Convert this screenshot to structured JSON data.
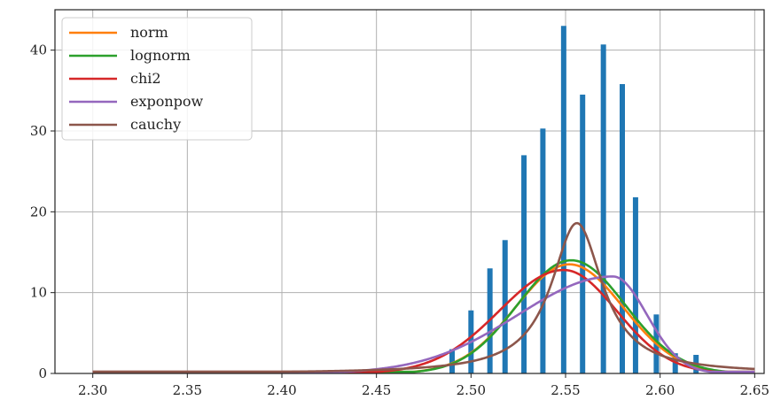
{
  "chart_data": {
    "type": "bar",
    "title": "",
    "xlabel": "",
    "ylabel": "",
    "xlim": [
      2.28,
      2.655
    ],
    "ylim": [
      0,
      45
    ],
    "grid": true,
    "legend_position": "top-left",
    "x_ticks": [
      "2.30",
      "2.35",
      "2.40",
      "2.45",
      "2.50",
      "2.55",
      "2.60",
      "2.65"
    ],
    "y_ticks": [
      "0",
      "10",
      "20",
      "30",
      "40"
    ],
    "histogram": {
      "color": "#1f77b4",
      "bins": [
        {
          "x": 2.49,
          "y": 3
        },
        {
          "x": 2.5,
          "y": 7.8
        },
        {
          "x": 2.51,
          "y": 13
        },
        {
          "x": 2.518,
          "y": 16.5
        },
        {
          "x": 2.528,
          "y": 27
        },
        {
          "x": 2.538,
          "y": 30.3
        },
        {
          "x": 2.549,
          "y": 43
        },
        {
          "x": 2.559,
          "y": 34.5
        },
        {
          "x": 2.57,
          "y": 40.7
        },
        {
          "x": 2.58,
          "y": 35.8
        },
        {
          "x": 2.587,
          "y": 21.8
        },
        {
          "x": 2.598,
          "y": 7.3
        },
        {
          "x": 2.608,
          "y": 2.5
        },
        {
          "x": 2.619,
          "y": 2.3
        }
      ]
    },
    "series": [
      {
        "name": "norm",
        "color": "#ff7f0e",
        "dist": "norm",
        "mu": 2.552,
        "sigma": 0.0285,
        "peak": 13.5
      },
      {
        "name": "lognorm",
        "color": "#2ca02c",
        "dist": "norm",
        "mu": 2.553,
        "sigma": 0.0285,
        "peak": 14.0
      },
      {
        "name": "chi2",
        "color": "#d62728",
        "dist": "skewed",
        "mu": 2.549,
        "sigma_left": 0.034,
        "sigma_right": 0.028,
        "peak": 12.8
      },
      {
        "name": "exponpow",
        "color": "#9467bd",
        "dist": "skewed",
        "mu": 2.575,
        "sigma_left": 0.05,
        "sigma_right": 0.018,
        "peak": 12.0
      },
      {
        "name": "cauchy",
        "color": "#8c564b",
        "dist": "cauchy",
        "x0": 2.556,
        "gamma": 0.0165,
        "peak": 18.6
      }
    ]
  }
}
